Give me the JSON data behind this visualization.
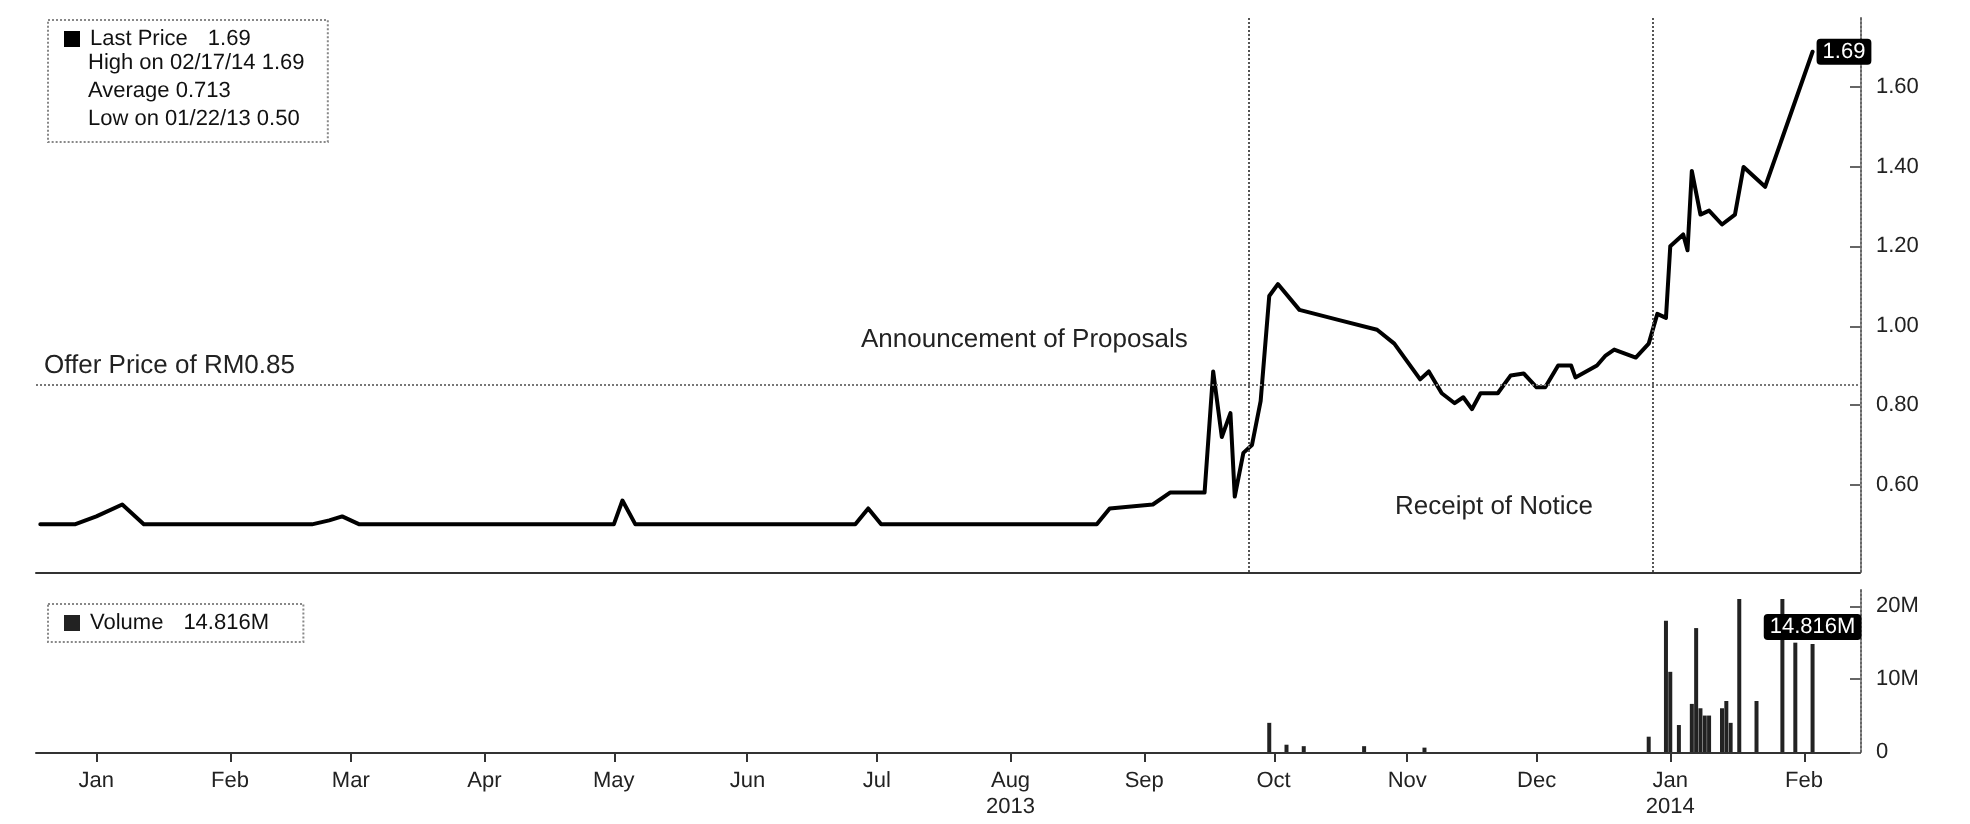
{
  "chart_data": [
    {
      "type": "line",
      "legend": "top left",
      "marker": "none",
      "line_style": "solid",
      "grid": false,
      "tick_labels": "y",
      "annotations": [
        "High on 02/17/14 1.69",
        "Average 0.713",
        "Low on 01/22/13 0.50"
      ],
      "xlim": [
        "2013-01-01",
        "2014-02-28"
      ],
      "ylim": [
        0.38,
        1.78
      ],
      "yticks": [
        {
          "value": 0.6,
          "label": "0.60"
        },
        {
          "value": 0.8,
          "label": "0.80"
        },
        {
          "value": 1.0,
          "label": "1.00"
        },
        {
          "value": 1.2,
          "label": "1.20"
        },
        {
          "value": 1.4,
          "label": "1.40"
        },
        {
          "value": 1.6,
          "label": "1.60"
        }
      ],
      "ref_lines": [
        {
          "axis": "x",
          "value": "2013-10-09",
          "label": "Announcement of Proposals",
          "line_style": "dotted",
          "color": "#555555"
        },
        {
          "axis": "x",
          "value": "2014-01-11",
          "label": "Receipt of Notice",
          "line_style": "dotted",
          "color": "#555555"
        },
        {
          "axis": "y",
          "value": 0.85,
          "label": "Offer Price of RM0.85",
          "line_style": "dotted",
          "color": "#777777"
        }
      ],
      "series": [
        {
          "name": "Last Price",
          "color": "#000000",
          "x": [
            "2013-01-02",
            "2013-01-10",
            "2013-01-15",
            "2013-01-21",
            "2013-01-26",
            "2013-03-06",
            "2013-03-10",
            "2013-03-13",
            "2013-03-17",
            "2013-05-15",
            "2013-05-17",
            "2013-05-20",
            "2013-07-10",
            "2013-07-13",
            "2013-07-16",
            "2013-09-04",
            "2013-09-07",
            "2013-09-17",
            "2013-09-21",
            "2013-09-29",
            "2013-10-01",
            "2013-10-03",
            "2013-10-05",
            "2013-10-06",
            "2013-10-08",
            "2013-10-10",
            "2013-10-12",
            "2013-10-14",
            "2013-10-16",
            "2013-10-21",
            "2013-10-30",
            "2013-11-08",
            "2013-11-12",
            "2013-11-18",
            "2013-11-20",
            "2013-11-23",
            "2013-11-26",
            "2013-11-28",
            "2013-11-30",
            "2013-12-02",
            "2013-12-06",
            "2013-12-09",
            "2013-12-12",
            "2013-12-15",
            "2013-12-17",
            "2013-12-20",
            "2013-12-23",
            "2013-12-24",
            "2013-12-29",
            "2013-12-31",
            "2014-01-02",
            "2014-01-07",
            "2014-01-10",
            "2014-01-12",
            "2014-01-14",
            "2014-01-15",
            "2014-01-18",
            "2014-01-19",
            "2014-01-20",
            "2014-01-22",
            "2014-01-24",
            "2014-01-27",
            "2014-01-30",
            "2014-02-01",
            "2014-02-06",
            "2014-02-17"
          ],
          "values": [
            0.5,
            0.5,
            0.52,
            0.55,
            0.5,
            0.5,
            0.51,
            0.52,
            0.5,
            0.5,
            0.56,
            0.5,
            0.5,
            0.54,
            0.5,
            0.5,
            0.54,
            0.55,
            0.58,
            0.58,
            0.885,
            0.72,
            0.78,
            0.57,
            0.68,
            0.7,
            0.81,
            1.075,
            1.105,
            1.04,
            1.015,
            0.99,
            0.955,
            0.865,
            0.885,
            0.83,
            0.805,
            0.82,
            0.79,
            0.83,
            0.83,
            0.875,
            0.88,
            0.845,
            0.845,
            0.9,
            0.9,
            0.87,
            0.9,
            0.925,
            0.94,
            0.92,
            0.955,
            1.03,
            1.02,
            1.2,
            1.23,
            1.19,
            1.39,
            1.28,
            1.29,
            1.255,
            1.28,
            1.4,
            1.35,
            1.69
          ],
          "value_labels": [
            null,
            null,
            null,
            null,
            null,
            null,
            null,
            null,
            null,
            null,
            null,
            null,
            null,
            null,
            null,
            null,
            null,
            null,
            null,
            null,
            null,
            null,
            null,
            null,
            null,
            null,
            null,
            null,
            null,
            null,
            null,
            null,
            null,
            null,
            null,
            null,
            null,
            null,
            null,
            null,
            null,
            null,
            null,
            null,
            null,
            null,
            null,
            null,
            null,
            null,
            null,
            null,
            null,
            null,
            null,
            null,
            null,
            null,
            null,
            null,
            null,
            null,
            null,
            null,
            null,
            "1.69"
          ]
        }
      ]
    },
    {
      "type": "bar",
      "legend": "top left",
      "grid": false,
      "xlim": [
        "2013-01-01",
        "2014-02-28"
      ],
      "ylim": [
        0,
        22.5
      ],
      "xticks": [
        {
          "value": "2013-01-15",
          "label": "Jan"
        },
        {
          "value": "2013-02-15",
          "label": "Feb"
        },
        {
          "value": "2013-03-15",
          "label": "Mar"
        },
        {
          "value": "2013-04-15",
          "label": "Apr"
        },
        {
          "value": "2013-05-15",
          "label": "May"
        },
        {
          "value": "2013-06-15",
          "label": "Jun"
        },
        {
          "value": "2013-07-15",
          "label": "Jul"
        },
        {
          "value": "2013-08-15",
          "label": "Aug\n2013"
        },
        {
          "value": "2013-09-15",
          "label": "Sep"
        },
        {
          "value": "2013-10-15",
          "label": "Oct"
        },
        {
          "value": "2013-11-15",
          "label": "Nov"
        },
        {
          "value": "2013-12-15",
          "label": "Dec"
        },
        {
          "value": "2014-01-15",
          "label": "Jan\n2014"
        },
        {
          "value": "2014-02-15",
          "label": "Feb"
        }
      ],
      "yticks": [
        0,
        {
          "value": 10,
          "label": "10M"
        },
        {
          "value": 20,
          "label": "20M"
        }
      ],
      "series": [
        {
          "name": "Volume",
          "color": "#222222",
          "x": [
            "2013-10-14",
            "2013-10-18",
            "2013-10-22",
            "2013-11-05",
            "2013-11-19",
            "2014-01-10",
            "2014-01-14",
            "2014-01-15",
            "2014-01-17",
            "2014-01-20",
            "2014-01-21",
            "2014-01-22",
            "2014-01-23",
            "2014-01-24",
            "2014-01-27",
            "2014-01-28",
            "2014-01-29",
            "2014-01-31",
            "2014-02-04",
            "2014-02-10",
            "2014-02-13",
            "2014-02-17"
          ],
          "values": [
            4.0,
            1.0,
            0.8,
            0.8,
            0.6,
            2.1,
            18,
            11,
            3.7,
            6.6,
            17,
            6,
            5,
            5,
            6,
            7,
            4,
            21,
            7,
            21,
            15,
            14.816
          ],
          "value_labels": [
            null,
            null,
            null,
            null,
            null,
            null,
            null,
            null,
            null,
            null,
            null,
            null,
            null,
            null,
            null,
            null,
            null,
            null,
            null,
            null,
            null,
            "14.816M"
          ]
        }
      ]
    }
  ]
}
